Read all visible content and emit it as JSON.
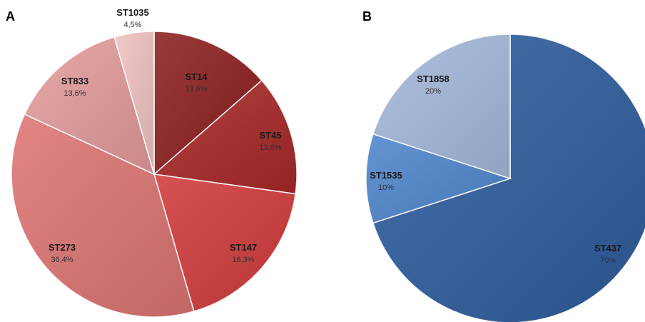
{
  "chart_data": [
    {
      "type": "pie",
      "panel": "A",
      "slices": [
        {
          "label": "ST14",
          "pct_label": "13,6%",
          "value": 13.6,
          "color": "#8c1f1f"
        },
        {
          "label": "ST45",
          "pct_label": "13,6%",
          "value": 13.6,
          "color": "#a82828"
        },
        {
          "label": "ST147",
          "pct_label": "18,3%",
          "value": 18.3,
          "color": "#d13b3b"
        },
        {
          "label": "ST273",
          "pct_label": "36,4%",
          "value": 36.4,
          "color": "#de7474"
        },
        {
          "label": "ST833",
          "pct_label": "13,6%",
          "value": 13.6,
          "color": "#e49c9c"
        },
        {
          "label": "ST1035",
          "pct_label": "4,5%",
          "value": 4.5,
          "color": "#f0c2c2"
        }
      ]
    },
    {
      "type": "pie",
      "panel": "B",
      "slices": [
        {
          "label": "ST437",
          "pct_label": "70%",
          "value": 70,
          "color": "#2f5d9e"
        },
        {
          "label": "ST1535",
          "pct_label": "10%",
          "value": 10,
          "color": "#4f86cc"
        },
        {
          "label": "ST1858",
          "pct_label": "20%",
          "value": 20,
          "color": "#a4b9db"
        }
      ]
    }
  ]
}
